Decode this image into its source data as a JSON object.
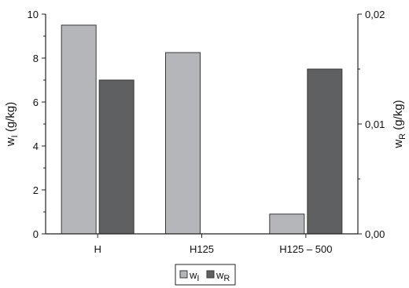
{
  "chart_data": {
    "type": "bar",
    "categories": [
      "H",
      "H125",
      "H125 – 500"
    ],
    "series": [
      {
        "name": "w",
        "subscript": "I",
        "axis": "left",
        "color": "#b4b6b9",
        "values": [
          9.5,
          8.25,
          0.9
        ]
      },
      {
        "name": "w",
        "subscript": "R",
        "axis": "right",
        "color": "#5f6062",
        "values": [
          0.014,
          null,
          0.015
        ]
      }
    ],
    "ylabel_left": {
      "main": "w",
      "sub": "I",
      "unit": " (g/kg)"
    },
    "ylabel_right": {
      "main": "w",
      "sub": "R",
      "unit": " (g/kg)"
    },
    "ylim_left": [
      0,
      10
    ],
    "yticks_left": [
      "0",
      "2",
      "4",
      "6",
      "8",
      "10"
    ],
    "ylim_right": [
      0,
      0.02
    ],
    "yticks_right": [
      "0,00",
      "0,01",
      "0,02"
    ],
    "grid": false,
    "legend_position": "bottom-center"
  }
}
